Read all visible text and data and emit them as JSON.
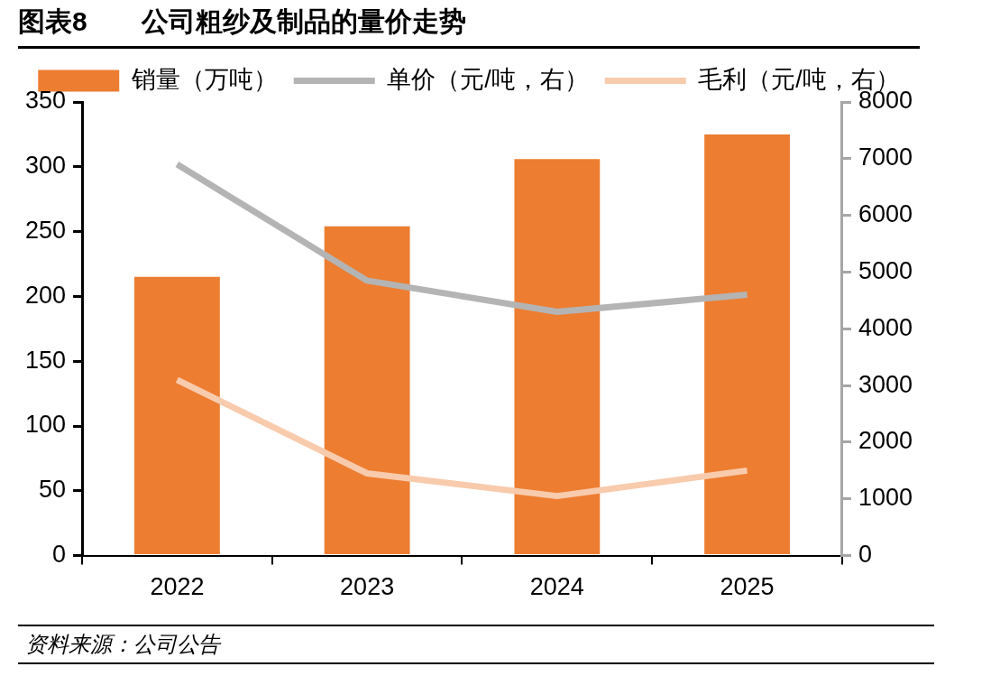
{
  "chart_data": {
    "type": "bar",
    "title": "图表8　　公司粗纱及制品的量价走势",
    "categories": [
      "2022",
      "2023",
      "2024",
      "2025"
    ],
    "series": [
      {
        "name": "销量（万吨）",
        "color": "#ed7d31",
        "values": [
          215,
          254,
          306,
          325
        ]
      },
      {
        "name": "单价（元/吨，右）",
        "type": "line",
        "axis": "y2",
        "color": "#b4b4b4",
        "values": [
          6900,
          4850,
          4300,
          4600
        ]
      },
      {
        "name": "毛利（元/吨，右）",
        "type": "line",
        "axis": "y2",
        "color": "#f8cbad",
        "values": [
          3100,
          1450,
          1050,
          1500
        ]
      }
    ],
    "ylim": [
      0,
      350
    ],
    "yticks": [
      0,
      50,
      100,
      150,
      200,
      250,
      300,
      350
    ],
    "y2lim": [
      0,
      8000
    ],
    "y2ticks": [
      0,
      1000,
      2000,
      3000,
      4000,
      5000,
      6000,
      7000,
      8000
    ],
    "grid": false,
    "legend": "top",
    "marker": "none",
    "line_style": "solid",
    "annotations": [
      "资料来源：公司公告"
    ]
  }
}
